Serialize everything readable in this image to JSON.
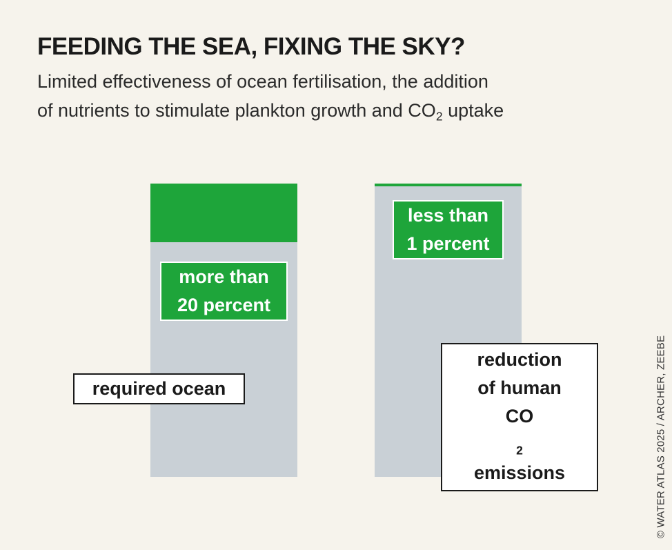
{
  "title": "FEEDING THE SEA, FIXING THE SKY?",
  "subtitle": {
    "line1": "Limited effectiveness of ocean fertilisation, the addition",
    "line2_prefix": "of nutrients to stimulate plankton growth and CO",
    "line2_sub": "2",
    "line2_suffix": " uptake"
  },
  "chart_data": {
    "type": "bar",
    "categories": [
      "required ocean",
      "reduction of human CO2 emissions"
    ],
    "series": [
      {
        "values": [
          20,
          1
        ]
      }
    ],
    "ylim": [
      0,
      100
    ],
    "value_labels": [
      {
        "line1": "more than",
        "line2": "20 percent"
      },
      {
        "line1": "less than",
        "line2": "1 percent"
      }
    ],
    "category_labels": [
      {
        "line1": "required ocean"
      },
      {
        "line1": "reduction",
        "line2": "of human",
        "line3_prefix": "CO",
        "line3_sub": "2",
        "line3_suffix": " emissions"
      }
    ]
  },
  "colors": {
    "highlight": "#1ea53a",
    "bar_background": "#c9d0d6",
    "page_background": "#f6f3ec"
  },
  "credit": "© WATER ATLAS 2025 / ARCHER, ZEEBE"
}
